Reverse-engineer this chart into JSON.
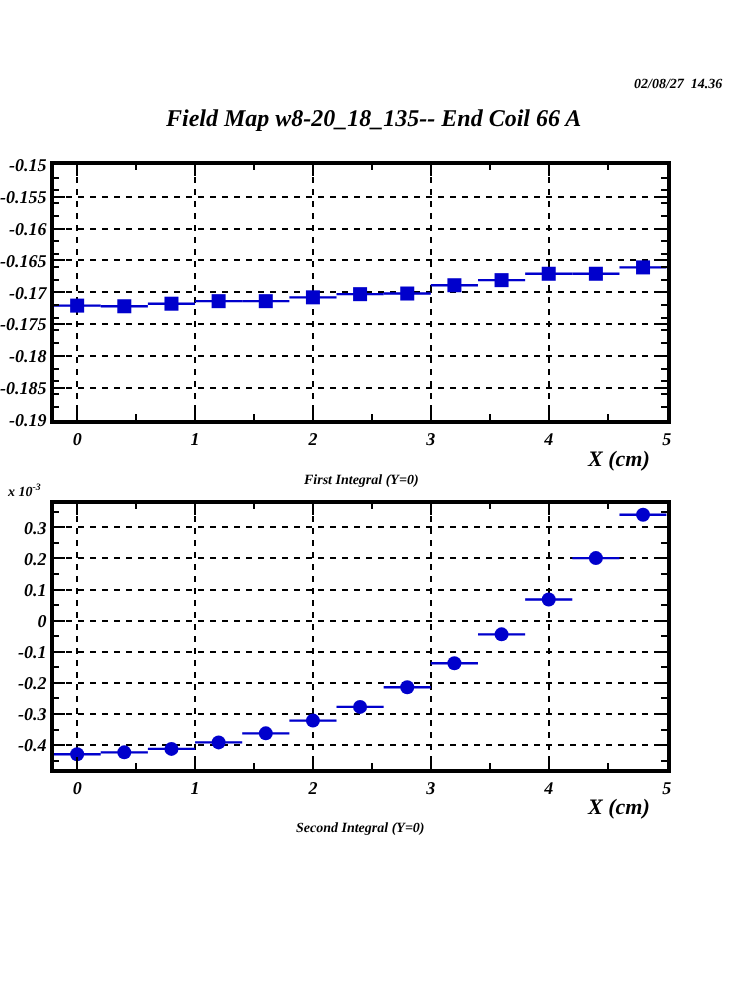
{
  "chart_data": [
    {
      "type": "scatter",
      "title": "Field Map w8-20_18_135-- End Coil 66 A",
      "xlabel": "X (cm)",
      "annotations": [
        "02/08/27  14.36",
        "First Integral (Y=0)"
      ],
      "x": [
        0,
        0.4,
        0.8,
        1.2,
        1.6,
        2.0,
        2.4,
        2.8,
        3.2,
        3.6,
        4.0,
        4.4,
        4.8
      ],
      "values": [
        -0.1721,
        -0.1722,
        -0.1718,
        -0.1714,
        -0.1714,
        -0.1708,
        -0.1703,
        -0.1702,
        -0.1689,
        -0.1681,
        -0.1671,
        -0.1671,
        -0.1661
      ],
      "xerrors": [
        0.2,
        0.2,
        0.2,
        0.2,
        0.2,
        0.2,
        0.2,
        0.2,
        0.2,
        0.2,
        0.2,
        0.2,
        0.2
      ],
      "color": "#0000cc",
      "marker": "square",
      "xlim": [
        -0.2,
        5
      ],
      "xticks": [
        0,
        1,
        2,
        3,
        4,
        5
      ],
      "ylim": [
        -0.19,
        -0.15
      ],
      "yticks": [
        -0.19,
        -0.185,
        -0.18,
        -0.175,
        -0.17,
        -0.165,
        -0.16,
        -0.155,
        -0.15
      ],
      "grid": true
    },
    {
      "type": "scatter",
      "xlabel": "X (cm)",
      "annotations": [
        "x 10$^{-3}$",
        "Second Integral (Y=0)"
      ],
      "x": [
        0,
        0.4,
        0.8,
        1.2,
        1.6,
        2.0,
        2.4,
        2.8,
        3.2,
        3.6,
        4.0,
        4.4,
        4.8
      ],
      "values": [
        -0.429,
        -0.423,
        -0.412,
        -0.391,
        -0.362,
        -0.321,
        -0.277,
        -0.214,
        -0.137,
        -0.044,
        0.068,
        0.201,
        0.34
      ],
      "xerrors": [
        0.2,
        0.2,
        0.2,
        0.2,
        0.2,
        0.2,
        0.2,
        0.2,
        0.2,
        0.2,
        0.2,
        0.2,
        0.2
      ],
      "color": "#0000cc",
      "marker": "circle",
      "xlim": [
        -0.2,
        5
      ],
      "xticks": [
        0,
        1,
        2,
        3,
        4,
        5
      ],
      "ylim": [
        -0.475,
        0.375
      ],
      "yticks": [
        -0.4,
        -0.3,
        -0.2,
        -0.1,
        0,
        0.1,
        0.2,
        0.3
      ],
      "grid": true
    }
  ]
}
